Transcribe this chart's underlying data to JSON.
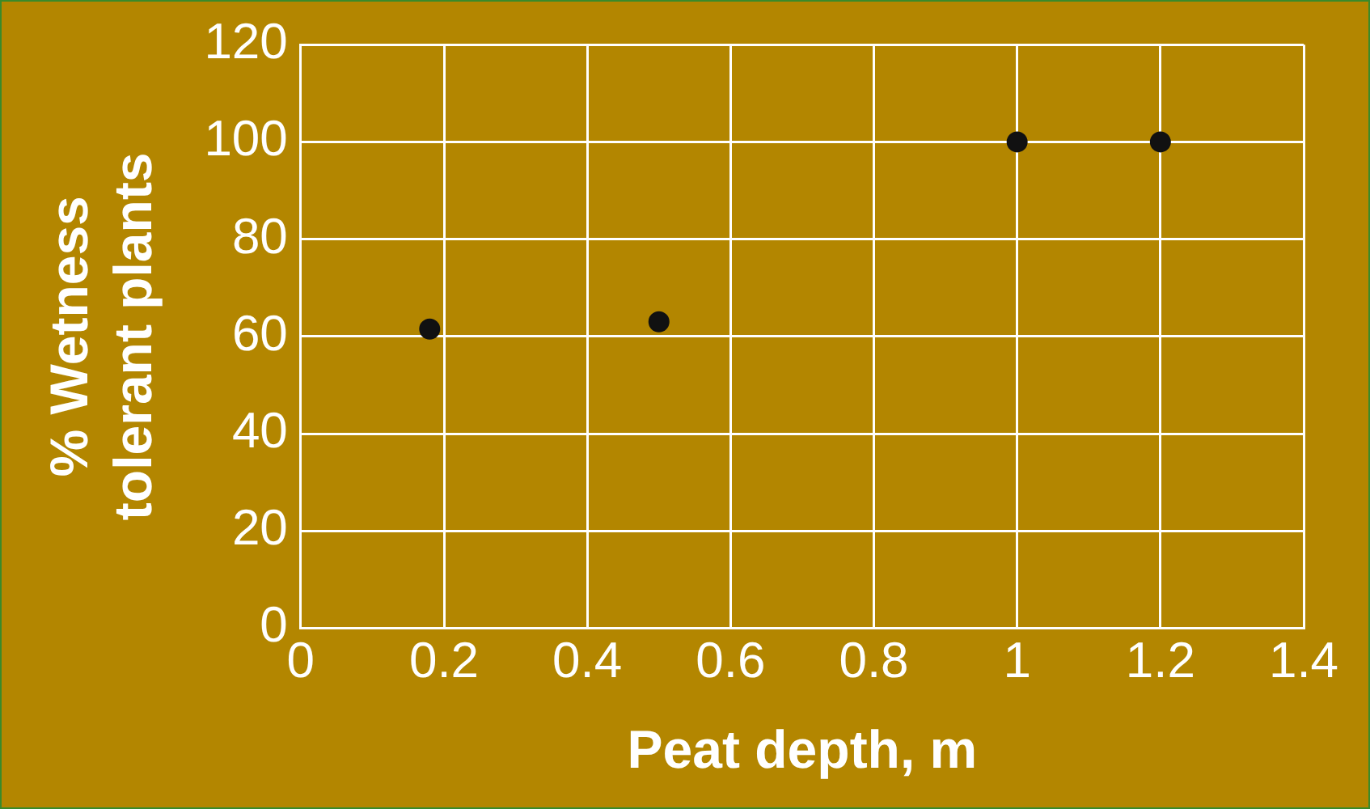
{
  "chart_data": {
    "type": "scatter",
    "xlabel": "Peat depth, m",
    "ylabel": "% Wetness\ntolerant plants",
    "x": [
      0.18,
      0.5,
      1,
      1.2
    ],
    "series": [
      {
        "color": "#111111",
        "values": [
          61.5,
          63,
          100,
          100
        ]
      }
    ],
    "xlim": [
      0,
      1.4
    ],
    "xticks": [
      0,
      0.2,
      0.4,
      0.6,
      0.8,
      1,
      1.2,
      1.4
    ],
    "ylim": [
      0,
      120
    ],
    "yticks": [
      0,
      20,
      40,
      60,
      80,
      100,
      120
    ],
    "grid": true,
    "legend": false,
    "marker": "circle"
  }
}
